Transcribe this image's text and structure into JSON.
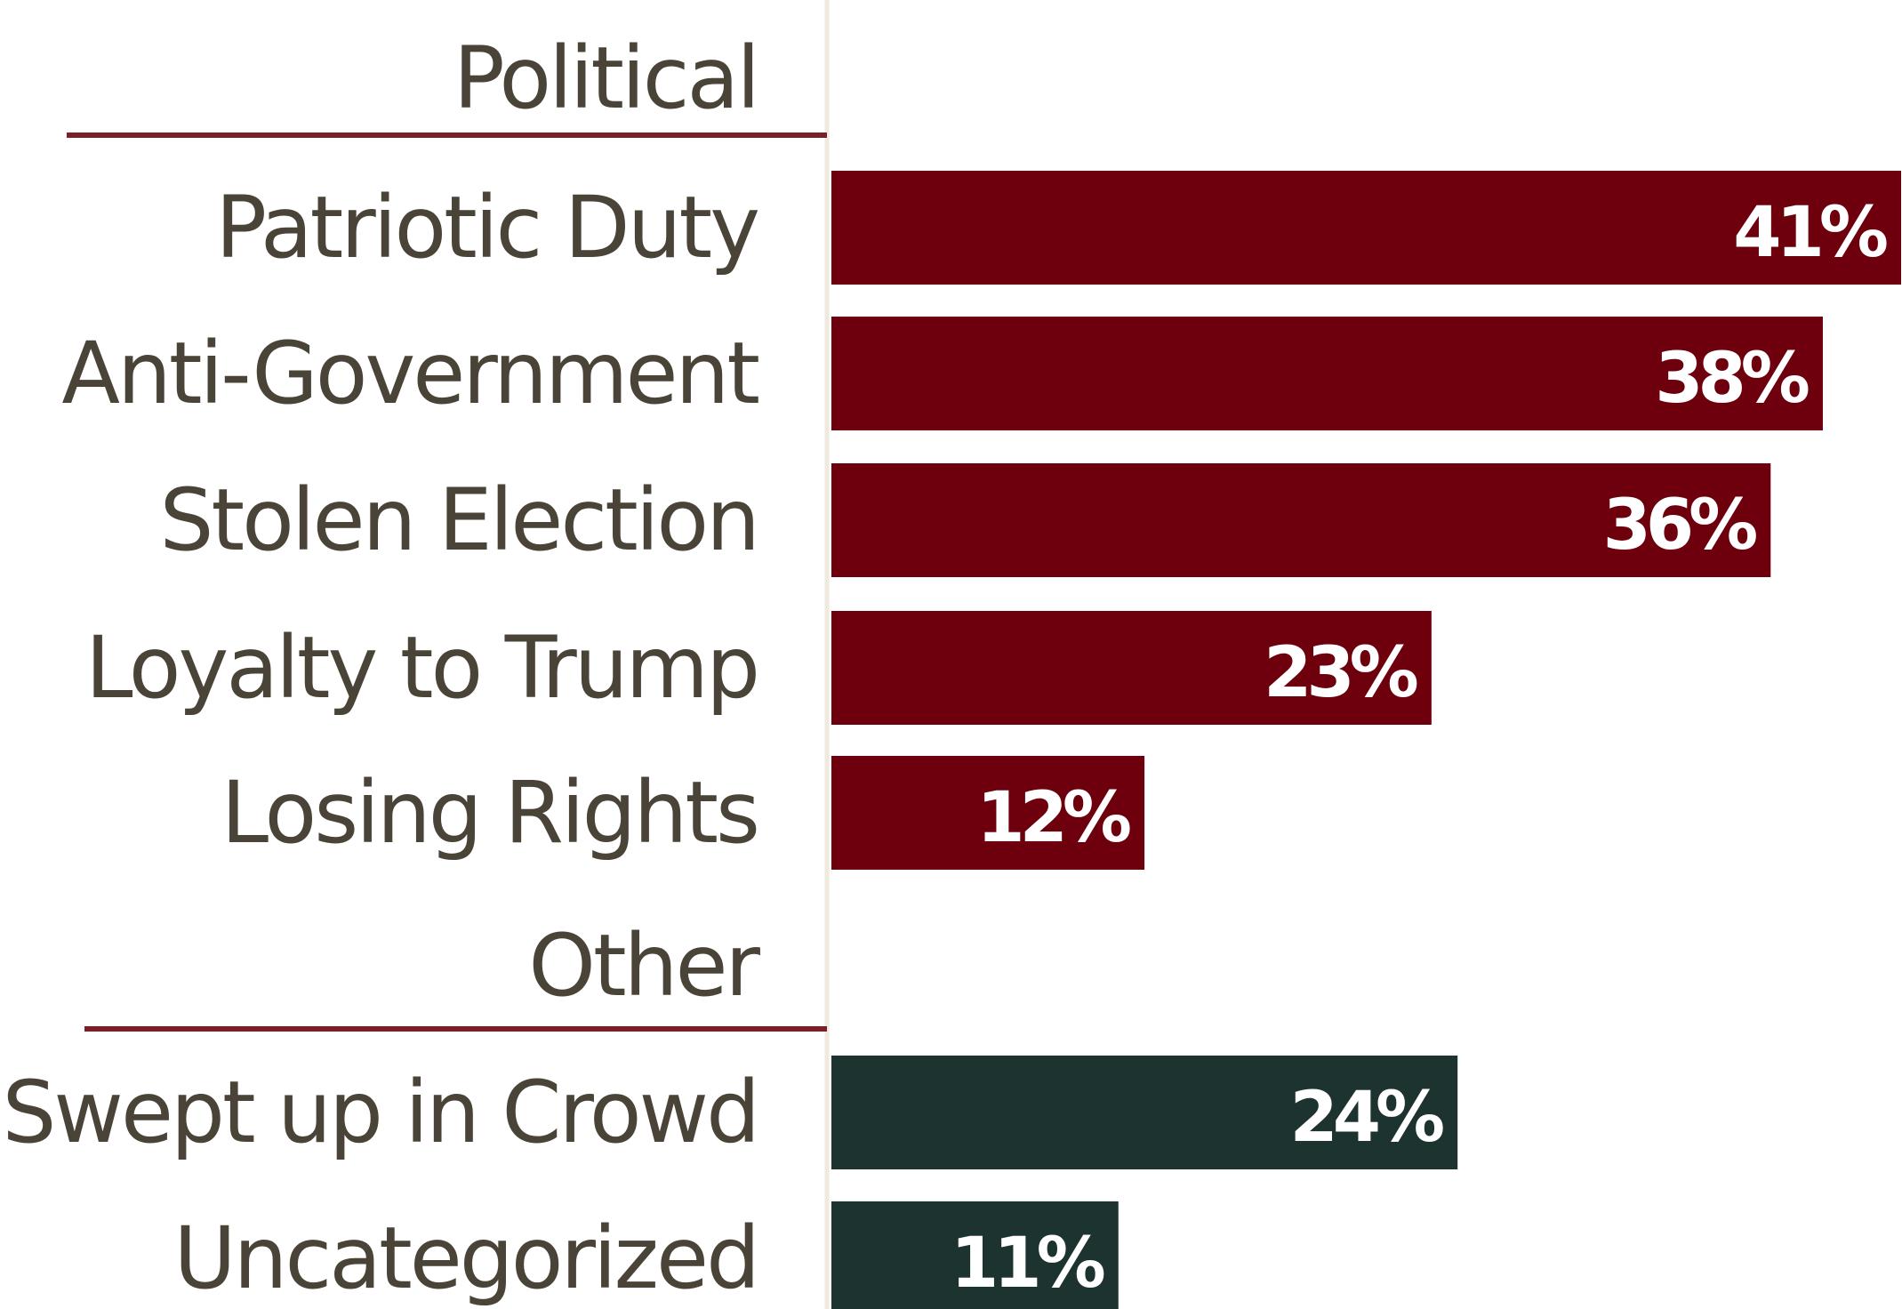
{
  "chart_data": {
    "type": "bar",
    "orientation": "horizontal",
    "title": "",
    "xlabel": "",
    "ylabel": "",
    "xlim": [
      0,
      41
    ],
    "value_suffix": "%",
    "grid": false,
    "legend": "none",
    "groups": [
      {
        "name": "Political",
        "color": "#6e000d",
        "categories": [
          "Patriotic Duty",
          "Anti-Government",
          "Stolen Election",
          "Loyalty to Trump",
          "Losing Rights"
        ],
        "values": [
          41,
          38,
          36,
          23,
          12
        ],
        "value_labels": [
          "41%",
          "38%",
          "36%",
          "23%",
          "12%"
        ]
      },
      {
        "name": "Other",
        "color": "#1d3330",
        "categories": [
          "Swept up in Crowd",
          "Uncategorized"
        ],
        "values": [
          24,
          11
        ],
        "value_labels": [
          "24%",
          "11%"
        ]
      }
    ],
    "colors": {
      "political": "#6e000d",
      "other": "#1d3330",
      "divider": "#7a1f28",
      "label_text": "#4a4438",
      "axis_line": "#efe9de"
    }
  }
}
